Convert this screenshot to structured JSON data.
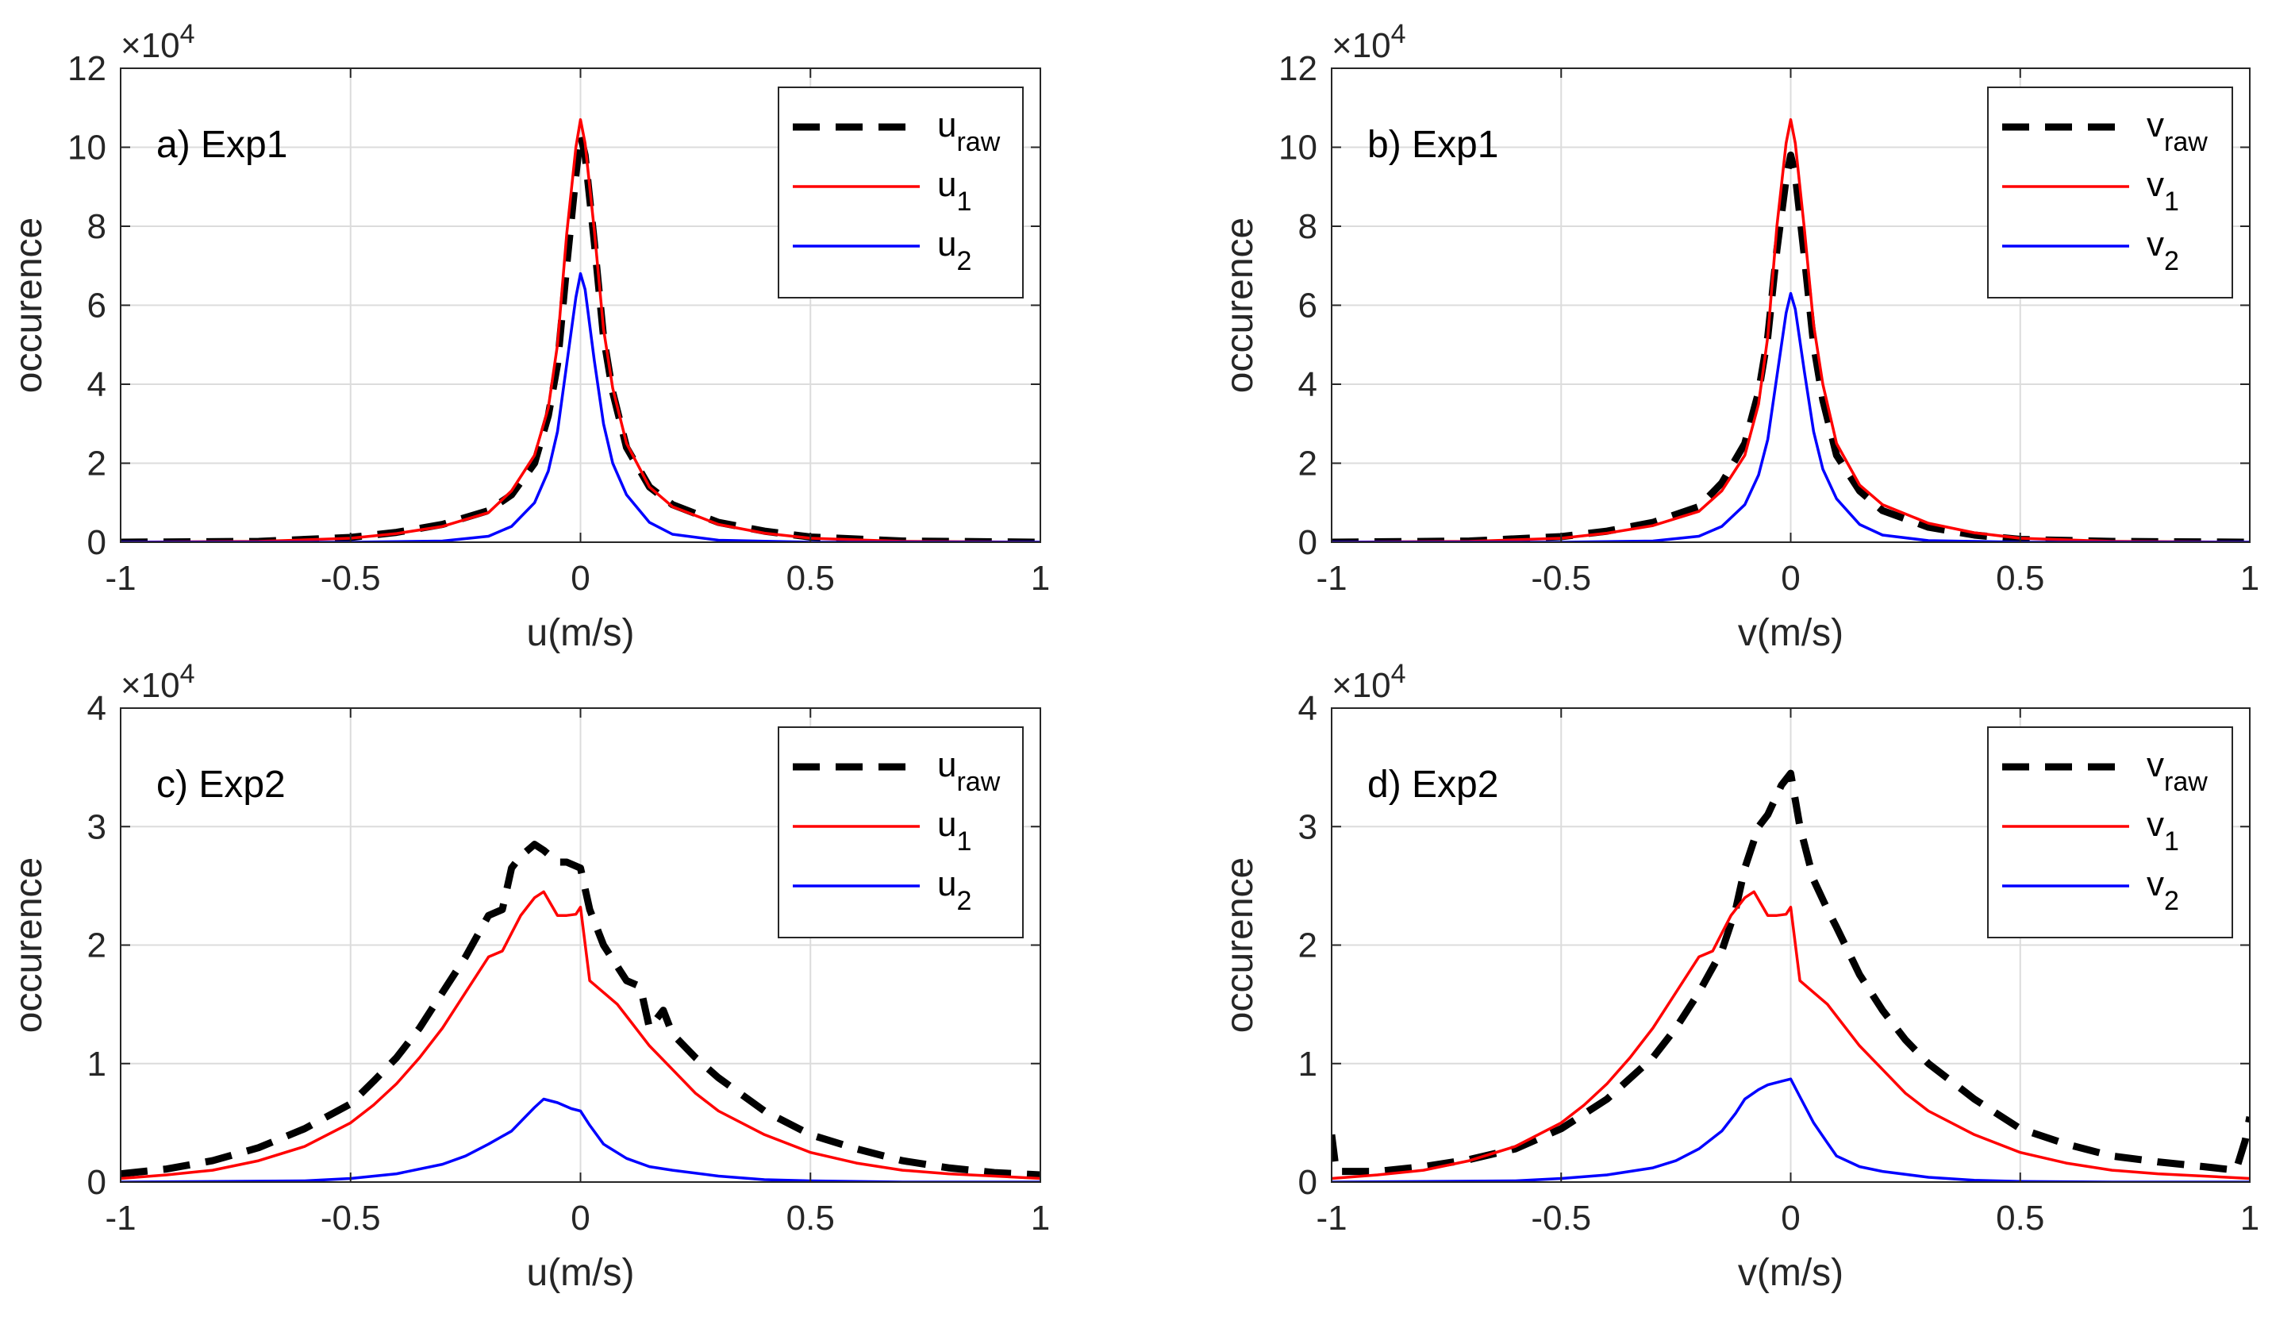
{
  "figure": {
    "name": "velocity-histograms"
  },
  "colors": {
    "raw": "#000000",
    "s1": "#ff0000",
    "s2": "#0000ff",
    "grid": "#dcdcdc",
    "axis": "#262626"
  },
  "chart_data": [
    {
      "type": "line",
      "panel_label": "a) Exp1",
      "xlabel": "u(m/s)",
      "ylabel": "occurence",
      "exponent_label": "×10",
      "exponent_power": "4",
      "xlim": [
        -1,
        1
      ],
      "ylim": [
        0,
        120000
      ],
      "xticks": [
        -1,
        -0.5,
        0,
        0.5,
        1
      ],
      "xtick_labels": [
        "-1",
        "-0.5",
        "0",
        "0.5",
        "1"
      ],
      "yticks": [
        0,
        20000,
        40000,
        60000,
        80000,
        100000,
        120000
      ],
      "ytick_labels": [
        "0",
        "2",
        "4",
        "6",
        "8",
        "10",
        "12"
      ],
      "legend_position": "top-right",
      "series": [
        {
          "key": "raw",
          "base": "u",
          "sub": "raw",
          "style": "dashed",
          "x": [
            -1,
            -0.7,
            -0.5,
            -0.4,
            -0.3,
            -0.2,
            -0.15,
            -0.1,
            -0.07,
            -0.05,
            -0.03,
            -0.01,
            0,
            0.01,
            0.03,
            0.05,
            0.07,
            0.1,
            0.15,
            0.2,
            0.3,
            0.4,
            0.5,
            0.7,
            1
          ],
          "y": [
            0,
            200,
            1200,
            2500,
            4500,
            8000,
            12000,
            20000,
            32000,
            45000,
            70000,
            93000,
            103000,
            98000,
            76000,
            52000,
            38000,
            24000,
            14000,
            9500,
            5000,
            2800,
            1300,
            300,
            0
          ]
        },
        {
          "key": "s1",
          "base": "u",
          "sub": "1",
          "style": "solid",
          "x": [
            -1,
            -0.7,
            -0.5,
            -0.4,
            -0.3,
            -0.2,
            -0.15,
            -0.1,
            -0.07,
            -0.05,
            -0.03,
            -0.01,
            0,
            0.01,
            0.03,
            0.05,
            0.07,
            0.1,
            0.15,
            0.2,
            0.3,
            0.4,
            0.5,
            0.7,
            1
          ],
          "y": [
            0,
            200,
            1000,
            2200,
            4000,
            7500,
            13000,
            22000,
            34000,
            50000,
            78000,
            100000,
            107000,
            101000,
            79000,
            54000,
            39000,
            25000,
            14000,
            9000,
            4500,
            2300,
            1000,
            200,
            0
          ]
        },
        {
          "key": "s2",
          "base": "u",
          "sub": "2",
          "style": "solid",
          "x": [
            -1,
            -0.5,
            -0.3,
            -0.2,
            -0.15,
            -0.1,
            -0.07,
            -0.05,
            -0.03,
            -0.01,
            0,
            0.01,
            0.03,
            0.05,
            0.07,
            0.1,
            0.15,
            0.2,
            0.3,
            0.5,
            1
          ],
          "y": [
            0,
            0,
            300,
            1500,
            4000,
            10000,
            18000,
            28000,
            45000,
            62000,
            68000,
            64000,
            46000,
            30000,
            20000,
            12000,
            5000,
            2000,
            500,
            0,
            0
          ]
        }
      ]
    },
    {
      "type": "line",
      "panel_label": "b) Exp1",
      "xlabel": "v(m/s)",
      "ylabel": "occurence",
      "exponent_label": "×10",
      "exponent_power": "4",
      "xlim": [
        -1,
        1
      ],
      "ylim": [
        0,
        120000
      ],
      "xticks": [
        -1,
        -0.5,
        0,
        0.5,
        1
      ],
      "xtick_labels": [
        "-1",
        "-0.5",
        "0",
        "0.5",
        "1"
      ],
      "yticks": [
        0,
        20000,
        40000,
        60000,
        80000,
        100000,
        120000
      ],
      "ytick_labels": [
        "0",
        "2",
        "4",
        "6",
        "8",
        "10",
        "12"
      ],
      "legend_position": "top-right",
      "series": [
        {
          "key": "raw",
          "base": "v",
          "sub": "raw",
          "style": "dashed",
          "x": [
            -1,
            -0.7,
            -0.5,
            -0.4,
            -0.3,
            -0.2,
            -0.15,
            -0.1,
            -0.07,
            -0.05,
            -0.03,
            -0.01,
            0,
            0.01,
            0.03,
            0.05,
            0.07,
            0.1,
            0.15,
            0.2,
            0.3,
            0.4,
            0.5,
            0.7,
            1
          ],
          "y": [
            0,
            300,
            1400,
            2800,
            5000,
            9000,
            15000,
            25000,
            38000,
            52000,
            74000,
            92000,
            98000,
            93000,
            72000,
            50000,
            36000,
            22000,
            13000,
            8000,
            3800,
            1800,
            700,
            200,
            0
          ]
        },
        {
          "key": "s1",
          "base": "v",
          "sub": "1",
          "style": "solid",
          "x": [
            -1,
            -0.7,
            -0.5,
            -0.4,
            -0.3,
            -0.2,
            -0.15,
            -0.1,
            -0.07,
            -0.05,
            -0.03,
            -0.01,
            0,
            0.01,
            0.03,
            0.05,
            0.07,
            0.1,
            0.15,
            0.2,
            0.3,
            0.4,
            0.5,
            0.7,
            1
          ],
          "y": [
            0,
            200,
            1000,
            2300,
            4200,
            7800,
            13000,
            22000,
            35000,
            52000,
            80000,
            101000,
            107000,
            101000,
            79000,
            55000,
            40000,
            25000,
            14500,
            9500,
            4800,
            2400,
            1000,
            200,
            0
          ]
        },
        {
          "key": "s2",
          "base": "v",
          "sub": "2",
          "style": "solid",
          "x": [
            -1,
            -0.5,
            -0.3,
            -0.2,
            -0.15,
            -0.1,
            -0.07,
            -0.05,
            -0.03,
            -0.01,
            0,
            0.01,
            0.03,
            0.05,
            0.07,
            0.1,
            0.15,
            0.2,
            0.3,
            0.5,
            1
          ],
          "y": [
            0,
            0,
            300,
            1500,
            4000,
            9500,
            17000,
            26000,
            42000,
            58000,
            63000,
            59000,
            43000,
            28000,
            18500,
            11000,
            4500,
            1800,
            400,
            0,
            0
          ]
        }
      ]
    },
    {
      "type": "line",
      "panel_label": "c) Exp2",
      "xlabel": "u(m/s)",
      "ylabel": "occurence",
      "exponent_label": "×10",
      "exponent_power": "4",
      "xlim": [
        -1,
        1
      ],
      "ylim": [
        0,
        40000
      ],
      "xticks": [
        -1,
        -0.5,
        0,
        0.5,
        1
      ],
      "xtick_labels": [
        "-1",
        "-0.5",
        "0",
        "0.5",
        "1"
      ],
      "yticks": [
        0,
        10000,
        20000,
        30000,
        40000
      ],
      "ytick_labels": [
        "0",
        "1",
        "2",
        "3",
        "4"
      ],
      "legend_position": "top-right",
      "series": [
        {
          "key": "raw",
          "base": "u",
          "sub": "raw",
          "style": "dashed",
          "x": [
            -1,
            -0.9,
            -0.8,
            -0.7,
            -0.6,
            -0.5,
            -0.45,
            -0.4,
            -0.35,
            -0.3,
            -0.25,
            -0.2,
            -0.17,
            -0.15,
            -0.13,
            -0.1,
            -0.08,
            -0.05,
            -0.03,
            0,
            0.02,
            0.05,
            0.1,
            0.13,
            0.15,
            0.18,
            0.2,
            0.25,
            0.3,
            0.4,
            0.5,
            0.6,
            0.7,
            0.8,
            0.9,
            1
          ],
          "y": [
            700,
            1100,
            1800,
            2900,
            4500,
            6600,
            8500,
            10500,
            13000,
            16000,
            19000,
            22500,
            23000,
            26500,
            27500,
            28500,
            28000,
            27000,
            27000,
            26500,
            23000,
            20000,
            17000,
            16500,
            13000,
            14500,
            12500,
            10500,
            8800,
            6000,
            4000,
            2800,
            1800,
            1200,
            800,
            600
          ]
        },
        {
          "key": "s1",
          "base": "u",
          "sub": "1",
          "style": "solid",
          "x": [
            -1,
            -0.9,
            -0.8,
            -0.7,
            -0.6,
            -0.5,
            -0.45,
            -0.4,
            -0.35,
            -0.3,
            -0.25,
            -0.2,
            -0.17,
            -0.15,
            -0.13,
            -0.1,
            -0.08,
            -0.05,
            -0.03,
            -0.01,
            0,
            0.02,
            0.05,
            0.08,
            0.1,
            0.15,
            0.2,
            0.25,
            0.3,
            0.4,
            0.5,
            0.6,
            0.7,
            0.8,
            0.9,
            1
          ],
          "y": [
            300,
            600,
            1000,
            1800,
            3000,
            5000,
            6500,
            8300,
            10500,
            13000,
            16000,
            19000,
            19500,
            21000,
            22500,
            24000,
            24500,
            22500,
            22500,
            22600,
            23200,
            17000,
            16000,
            15000,
            14000,
            11500,
            9500,
            7500,
            6000,
            4000,
            2500,
            1600,
            1000,
            700,
            500,
            300
          ]
        },
        {
          "key": "s2",
          "base": "u",
          "sub": "2",
          "style": "solid",
          "x": [
            -1,
            -0.6,
            -0.5,
            -0.4,
            -0.3,
            -0.25,
            -0.2,
            -0.15,
            -0.12,
            -0.1,
            -0.08,
            -0.05,
            -0.02,
            0,
            0.02,
            0.05,
            0.1,
            0.15,
            0.2,
            0.3,
            0.4,
            0.5,
            0.7,
            1
          ],
          "y": [
            0,
            100,
            300,
            700,
            1500,
            2200,
            3200,
            4300,
            5500,
            6300,
            7000,
            6700,
            6200,
            6000,
            4800,
            3200,
            2000,
            1300,
            1000,
            500,
            200,
            100,
            0,
            0
          ]
        }
      ]
    },
    {
      "type": "line",
      "panel_label": "d) Exp2",
      "xlabel": "v(m/s)",
      "ylabel": "occurence",
      "exponent_label": "×10",
      "exponent_power": "4",
      "xlim": [
        -1,
        1
      ],
      "ylim": [
        0,
        40000
      ],
      "xticks": [
        -1,
        -0.5,
        0,
        0.5,
        1
      ],
      "xtick_labels": [
        "-1",
        "-0.5",
        "0",
        "0.5",
        "1"
      ],
      "yticks": [
        0,
        10000,
        20000,
        30000,
        40000
      ],
      "ytick_labels": [
        "0",
        "1",
        "2",
        "3",
        "4"
      ],
      "legend_position": "top-right",
      "series": [
        {
          "key": "raw",
          "base": "v",
          "sub": "raw",
          "style": "dashed",
          "x": [
            -1,
            -0.99,
            -0.9,
            -0.8,
            -0.7,
            -0.6,
            -0.5,
            -0.4,
            -0.3,
            -0.25,
            -0.2,
            -0.15,
            -0.12,
            -0.1,
            -0.07,
            -0.05,
            -0.02,
            0,
            0.02,
            0.05,
            0.08,
            0.1,
            0.15,
            0.2,
            0.25,
            0.3,
            0.35,
            0.4,
            0.5,
            0.6,
            0.7,
            0.8,
            0.9,
            0.97,
            0.99,
            1
          ],
          "y": [
            4000,
            900,
            900,
            1300,
            1900,
            2800,
            4500,
            7000,
            10500,
            13000,
            16000,
            19500,
            23000,
            26500,
            30000,
            31000,
            33500,
            34500,
            30000,
            25500,
            23000,
            21500,
            17500,
            14500,
            12000,
            10000,
            8500,
            7000,
            4500,
            3200,
            2200,
            1700,
            1300,
            1000,
            3500,
            5500
          ]
        },
        {
          "key": "s1",
          "base": "v",
          "sub": "1",
          "style": "solid",
          "x": [
            -1,
            -0.9,
            -0.8,
            -0.7,
            -0.6,
            -0.5,
            -0.45,
            -0.4,
            -0.35,
            -0.3,
            -0.25,
            -0.2,
            -0.17,
            -0.15,
            -0.13,
            -0.1,
            -0.08,
            -0.05,
            -0.03,
            -0.01,
            0,
            0.02,
            0.05,
            0.08,
            0.1,
            0.15,
            0.2,
            0.25,
            0.3,
            0.4,
            0.5,
            0.6,
            0.7,
            0.8,
            0.9,
            1
          ],
          "y": [
            300,
            600,
            1000,
            1800,
            3000,
            5000,
            6500,
            8300,
            10500,
            13000,
            16000,
            19000,
            19500,
            21000,
            22500,
            24000,
            24500,
            22500,
            22500,
            22600,
            23200,
            17000,
            16000,
            15000,
            14000,
            11500,
            9500,
            7500,
            6000,
            4000,
            2500,
            1600,
            1000,
            700,
            500,
            300
          ]
        },
        {
          "key": "s2",
          "base": "v",
          "sub": "2",
          "style": "solid",
          "x": [
            -1,
            -0.6,
            -0.5,
            -0.4,
            -0.3,
            -0.25,
            -0.2,
            -0.15,
            -0.12,
            -0.1,
            -0.07,
            -0.05,
            -0.02,
            0,
            0.02,
            0.05,
            0.08,
            0.1,
            0.15,
            0.2,
            0.3,
            0.4,
            0.5,
            0.7,
            1
          ],
          "y": [
            0,
            100,
            300,
            600,
            1200,
            1800,
            2800,
            4300,
            5800,
            7000,
            7800,
            8200,
            8500,
            8700,
            7200,
            5000,
            3300,
            2200,
            1300,
            900,
            400,
            150,
            50,
            0,
            0
          ]
        }
      ]
    }
  ]
}
